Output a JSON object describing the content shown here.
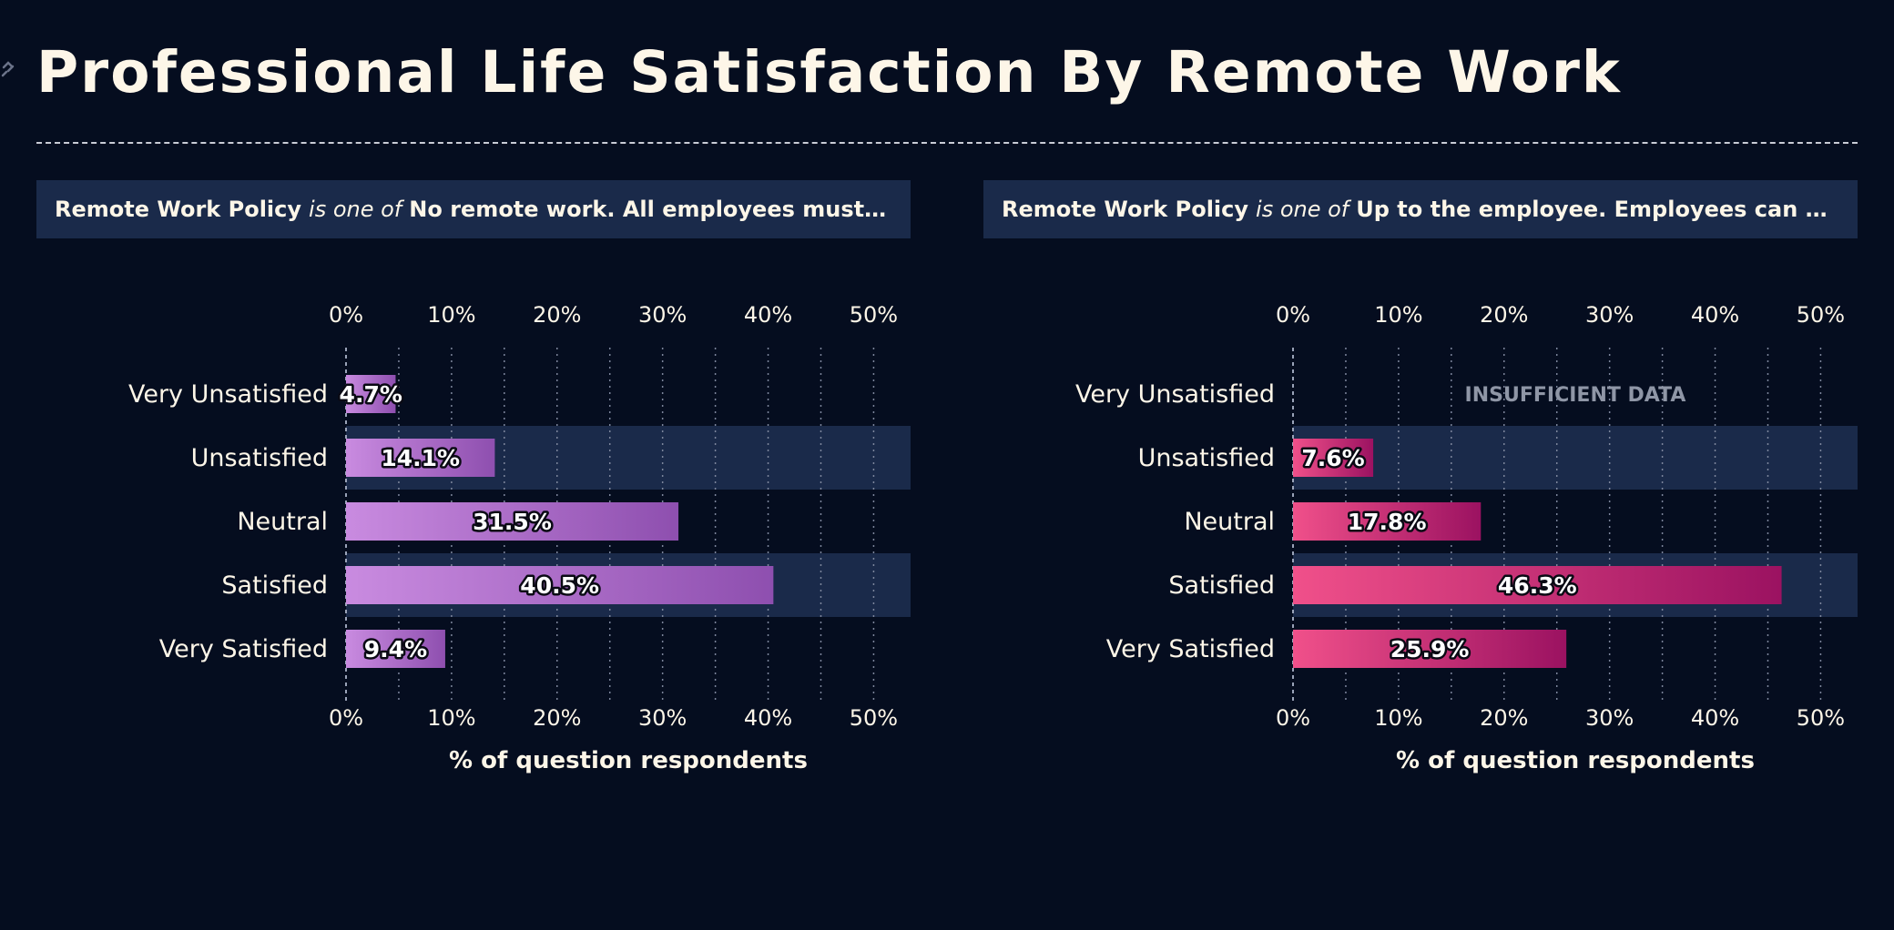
{
  "title": "Professional Life Satisfaction By Remote Work",
  "colors": {
    "background": "#050d1f",
    "band": "#1a2a4a",
    "text": "#fdf6e8",
    "panel1_bar_start": "#c98be0",
    "panel1_bar_end": "#8e4faf",
    "panel2_bar_start": "#f0508a",
    "panel2_bar_end": "#9b1261"
  },
  "panels": [
    {
      "filter": {
        "field": "Remote Work Policy",
        "operator": "is one of",
        "value": "No remote work. All employees must at..."
      }
    },
    {
      "filter": {
        "field": "Remote Work Policy",
        "operator": "is one of",
        "value": "Up to the employee. Employees can cho..."
      }
    }
  ],
  "chart_data": [
    {
      "type": "bar",
      "orientation": "horizontal",
      "categories": [
        "Very Unsatisfied",
        "Unsatisfied",
        "Neutral",
        "Satisfied",
        "Very Satisfied"
      ],
      "values": [
        4.7,
        14.1,
        31.5,
        40.5,
        9.4
      ],
      "value_labels": [
        "4.7%",
        "14.1%",
        "31.5%",
        "40.5%",
        "9.4%"
      ],
      "xlabel": "% of question respondents",
      "ticks": [
        "0%",
        "10%",
        "20%",
        "30%",
        "40%",
        "50%"
      ],
      "xlim": [
        0,
        53.5
      ],
      "grid": true
    },
    {
      "type": "bar",
      "orientation": "horizontal",
      "categories": [
        "Very Unsatisfied",
        "Unsatisfied",
        "Neutral",
        "Satisfied",
        "Very Satisfied"
      ],
      "values": [
        null,
        7.6,
        17.8,
        46.3,
        25.9
      ],
      "value_labels": [
        "",
        "7.6%",
        "17.8%",
        "46.3%",
        "25.9%"
      ],
      "missing_label": "INSUFFICIENT DATA",
      "xlabel": "% of question respondents",
      "ticks": [
        "0%",
        "10%",
        "20%",
        "30%",
        "40%",
        "50%"
      ],
      "xlim": [
        0,
        53.5
      ],
      "grid": true
    }
  ]
}
